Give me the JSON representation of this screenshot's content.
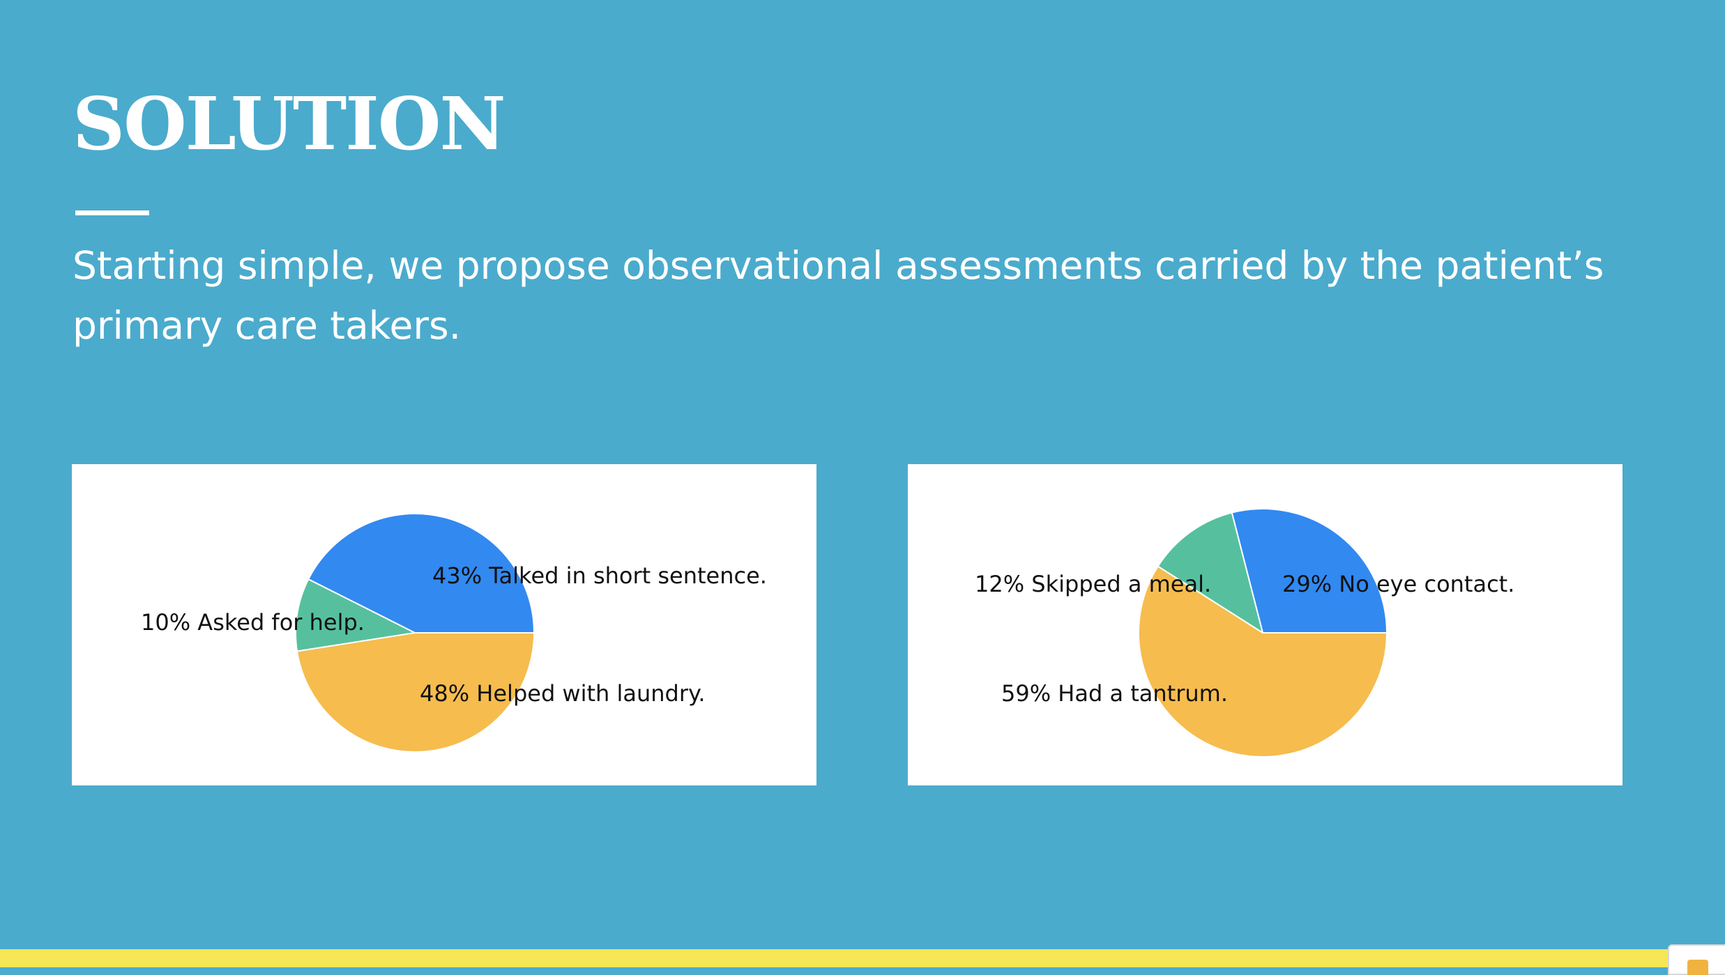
{
  "slide": {
    "title": "SOLUTION",
    "subtitle": "Starting simple, we propose observational assessments carried by the patient’s primary care takers."
  },
  "colors": {
    "background": "#4aabcd",
    "bottom_bar": "#f5e755",
    "blue": "#3289f0",
    "teal": "#56c09e",
    "orange": "#f6bc4e"
  },
  "chart_data": [
    {
      "type": "pie",
      "slices": [
        {
          "label": "43% Talked in short sentence.",
          "value": 43,
          "color": "#3289f0"
        },
        {
          "label": "10% Asked for help.",
          "value": 10,
          "color": "#56c09e"
        },
        {
          "label": "48% Helped with laundry.",
          "value": 48,
          "color": "#f6bc4e"
        }
      ]
    },
    {
      "type": "pie",
      "slices": [
        {
          "label": "29% No eye contact.",
          "value": 29,
          "color": "#3289f0"
        },
        {
          "label": "12% Skipped a meal.",
          "value": 12,
          "color": "#56c09e"
        },
        {
          "label": "59% Had a tantrum.",
          "value": 59,
          "color": "#f6bc4e"
        }
      ]
    }
  ]
}
